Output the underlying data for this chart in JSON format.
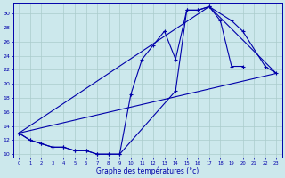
{
  "xlabel": "Graphe des températures (°c)",
  "bg_color": "#cce8ec",
  "line_color": "#0000aa",
  "grid_color": "#aacccc",
  "ylim": [
    9.5,
    31.5
  ],
  "xlim": [
    -0.5,
    23.5
  ],
  "yticks": [
    10,
    12,
    14,
    16,
    18,
    20,
    22,
    24,
    26,
    28,
    30
  ],
  "xticks": [
    0,
    1,
    2,
    3,
    4,
    5,
    6,
    7,
    8,
    9,
    10,
    11,
    12,
    13,
    14,
    15,
    16,
    17,
    18,
    19,
    20,
    21,
    22,
    23
  ],
  "curve1_x": [
    0,
    1,
    2,
    3,
    4,
    5,
    6,
    7,
    8,
    9,
    10,
    11,
    12,
    13,
    14,
    15,
    16,
    17,
    18,
    19,
    20
  ],
  "curve1_y": [
    13,
    12,
    11.5,
    11,
    11,
    10.5,
    10.5,
    10,
    10,
    10,
    18.5,
    23.5,
    25.5,
    27.5,
    23.5,
    30.5,
    30.5,
    31,
    29,
    22.5,
    22.5
  ],
  "curve2_x": [
    0,
    1,
    2,
    3,
    4,
    5,
    6,
    7,
    8,
    9,
    14,
    15,
    16,
    17,
    19,
    20,
    22,
    23
  ],
  "curve2_y": [
    13,
    12,
    11.5,
    11,
    11,
    10.5,
    10.5,
    10,
    10,
    10,
    19,
    30.5,
    30.5,
    31,
    29,
    27.5,
    22.5,
    21.5
  ],
  "tri_lines": [
    {
      "x": [
        0,
        17
      ],
      "y": [
        13,
        31
      ]
    },
    {
      "x": [
        0,
        23
      ],
      "y": [
        13,
        21.5
      ]
    },
    {
      "x": [
        17,
        23
      ],
      "y": [
        31,
        21.5
      ]
    }
  ]
}
